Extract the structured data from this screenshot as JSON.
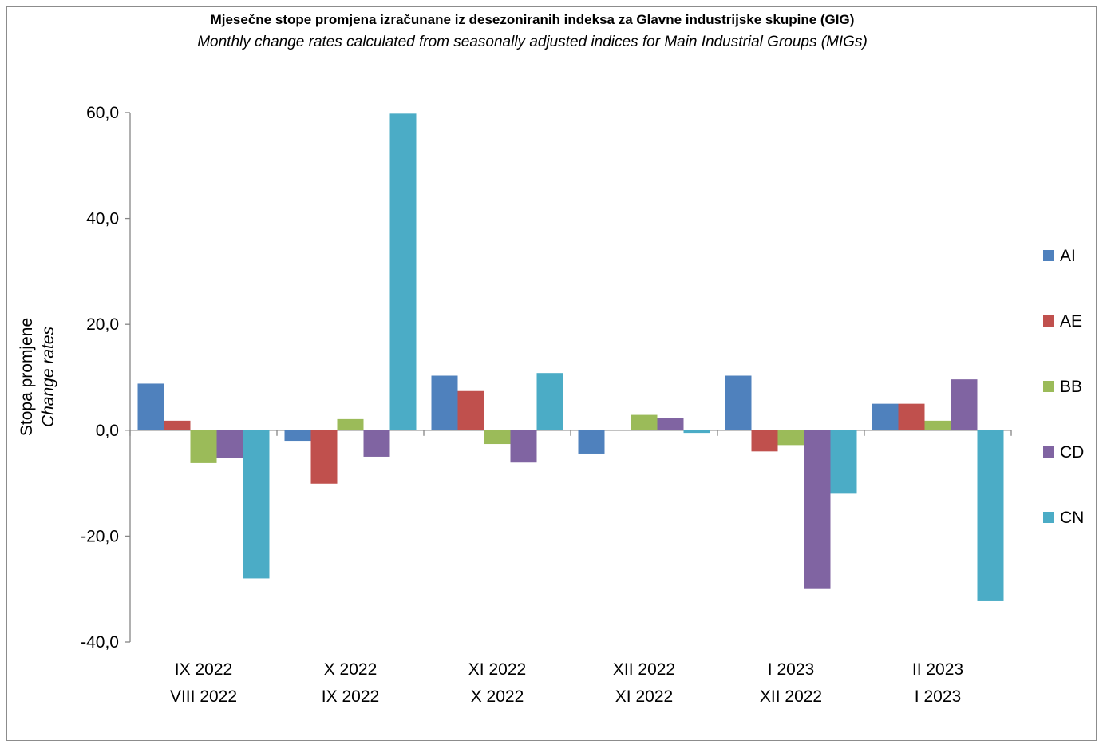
{
  "chart_data": {
    "type": "bar",
    "title": "Mjesečne stope promjena izračunane iz desezoniranih indeksa za Glavne industrijske skupine (GIG)",
    "subtitle": "Monthly change rates calculated from seasonally adjusted indices for Main Industrial Groups (MIGs)",
    "ylabel": "Stopa promjene",
    "ylabel_en": "Change rates",
    "ylim": [
      -40,
      60
    ],
    "yticks": [
      "60,0",
      "40,0",
      "20,0",
      "0,0",
      "-20,0",
      "-40,0"
    ],
    "ytick_values": [
      60,
      40,
      20,
      0,
      -20,
      -40
    ],
    "categories": [
      [
        "IX 2022",
        "VIII 2022"
      ],
      [
        "X 2022",
        "IX 2022"
      ],
      [
        "XI 2022",
        "X 2022"
      ],
      [
        "XII 2022",
        "XI 2022"
      ],
      [
        "I 2023",
        "XII 2022"
      ],
      [
        "II 2023",
        "I 2023"
      ]
    ],
    "series": [
      {
        "name": "AI",
        "color": "#4f81bd",
        "values": [
          8.8,
          -2.0,
          10.3,
          -4.4,
          10.3,
          5.0
        ]
      },
      {
        "name": "AE",
        "color": "#c0504d",
        "values": [
          1.8,
          -10.1,
          7.4,
          0.0,
          -4.0,
          5.0
        ]
      },
      {
        "name": "BB",
        "color": "#9bbb59",
        "values": [
          -6.2,
          2.1,
          -2.6,
          2.9,
          -2.8,
          1.8
        ]
      },
      {
        "name": "CD",
        "color": "#8064a2",
        "values": [
          -5.3,
          -5.0,
          -6.1,
          2.3,
          -30.0,
          9.6
        ]
      },
      {
        "name": "CN",
        "color": "#4bacc6",
        "values": [
          -28.0,
          59.8,
          10.8,
          -0.5,
          -12.0,
          -32.3
        ]
      }
    ],
    "legend_position": "right",
    "grid": false
  }
}
